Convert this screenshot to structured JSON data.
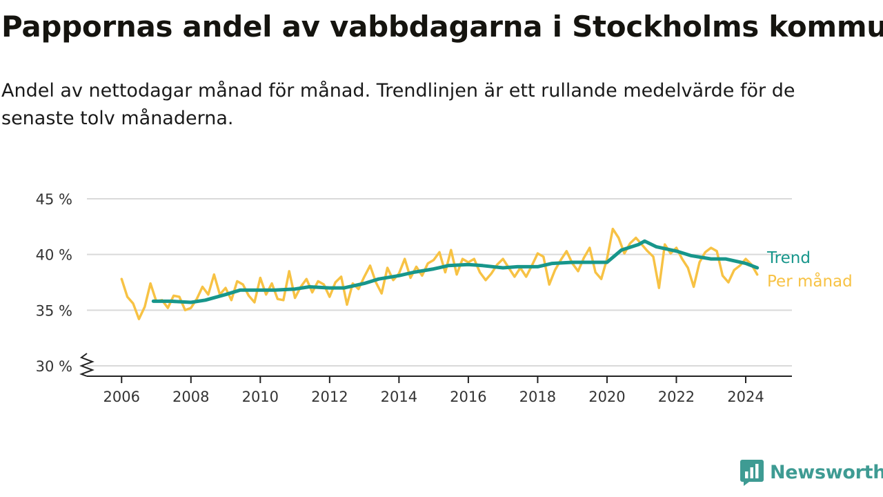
{
  "title": "Pappornas andel av vabbdagarna i Stockholms kommun",
  "subtitle": "Andel av nettodagar månad för månad. Trendlinjen är ett rullande medelvärde för de senaste tolv månaderna.",
  "brand": {
    "name": "Newsworthy",
    "icon": "newsworthy-bar-chart-logo-icon",
    "color": "#3e9b93"
  },
  "chart_data": {
    "type": "line",
    "x_type": "date",
    "xlim": [
      "2005-01-01",
      "2025-05-01"
    ],
    "ylim": [
      30,
      45
    ],
    "y_axis_broken": true,
    "grid": true,
    "x_tick_values": [
      "2006-01-01",
      "2008-01-01",
      "2010-01-01",
      "2012-01-01",
      "2014-01-01",
      "2016-01-01",
      "2018-01-01",
      "2020-01-01",
      "2022-01-01",
      "2024-01-01"
    ],
    "x_tick_labels": [
      "2006",
      "2008",
      "2010",
      "2012",
      "2014",
      "2016",
      "2018",
      "2020",
      "2022",
      "2024"
    ],
    "y_ticks": [
      30,
      35,
      40,
      45
    ],
    "y_tick_labels": [
      "30 %",
      "35 %",
      "40 %",
      "45 %"
    ],
    "legend_placement": "right, at line ends",
    "series": [
      {
        "name": "Per månad",
        "color": "#f7c244",
        "points": [
          [
            "2006-01-01",
            37.8
          ],
          [
            "2006-03-01",
            36.2
          ],
          [
            "2006-05-01",
            35.6
          ],
          [
            "2006-07-01",
            34.2
          ],
          [
            "2006-09-01",
            35.3
          ],
          [
            "2006-11-01",
            37.4
          ],
          [
            "2007-01-01",
            35.8
          ],
          [
            "2007-03-01",
            35.9
          ],
          [
            "2007-05-01",
            35.2
          ],
          [
            "2007-07-01",
            36.3
          ],
          [
            "2007-09-01",
            36.2
          ],
          [
            "2007-11-01",
            35.0
          ],
          [
            "2008-01-01",
            35.2
          ],
          [
            "2008-03-01",
            36.0
          ],
          [
            "2008-05-01",
            37.1
          ],
          [
            "2008-07-01",
            36.4
          ],
          [
            "2008-09-01",
            38.2
          ],
          [
            "2008-11-01",
            36.4
          ],
          [
            "2009-01-01",
            37.0
          ],
          [
            "2009-03-01",
            35.9
          ],
          [
            "2009-05-01",
            37.6
          ],
          [
            "2009-07-01",
            37.3
          ],
          [
            "2009-09-01",
            36.3
          ],
          [
            "2009-11-01",
            35.7
          ],
          [
            "2010-01-01",
            37.9
          ],
          [
            "2010-03-01",
            36.4
          ],
          [
            "2010-05-01",
            37.4
          ],
          [
            "2010-07-01",
            36.0
          ],
          [
            "2010-09-01",
            35.9
          ],
          [
            "2010-11-01",
            38.5
          ],
          [
            "2011-01-01",
            36.1
          ],
          [
            "2011-03-01",
            37.1
          ],
          [
            "2011-05-01",
            37.8
          ],
          [
            "2011-07-01",
            36.6
          ],
          [
            "2011-09-01",
            37.6
          ],
          [
            "2011-11-01",
            37.3
          ],
          [
            "2012-01-01",
            36.2
          ],
          [
            "2012-03-01",
            37.5
          ],
          [
            "2012-05-01",
            38.0
          ],
          [
            "2012-07-01",
            35.5
          ],
          [
            "2012-09-01",
            37.4
          ],
          [
            "2012-11-01",
            36.9
          ],
          [
            "2013-01-01",
            38.0
          ],
          [
            "2013-03-01",
            39.0
          ],
          [
            "2013-05-01",
            37.5
          ],
          [
            "2013-07-01",
            36.5
          ],
          [
            "2013-09-01",
            38.8
          ],
          [
            "2013-11-01",
            37.7
          ],
          [
            "2014-01-01",
            38.3
          ],
          [
            "2014-03-01",
            39.6
          ],
          [
            "2014-05-01",
            37.9
          ],
          [
            "2014-07-01",
            38.9
          ],
          [
            "2014-09-01",
            38.1
          ],
          [
            "2014-11-01",
            39.2
          ],
          [
            "2015-01-01",
            39.5
          ],
          [
            "2015-03-01",
            40.2
          ],
          [
            "2015-05-01",
            38.4
          ],
          [
            "2015-07-01",
            40.4
          ],
          [
            "2015-09-01",
            38.2
          ],
          [
            "2015-11-01",
            39.6
          ],
          [
            "2016-01-01",
            39.3
          ],
          [
            "2016-03-01",
            39.6
          ],
          [
            "2016-05-01",
            38.4
          ],
          [
            "2016-07-01",
            37.7
          ],
          [
            "2016-09-01",
            38.3
          ],
          [
            "2016-11-01",
            39.1
          ],
          [
            "2017-01-01",
            39.6
          ],
          [
            "2017-03-01",
            38.8
          ],
          [
            "2017-05-01",
            38.0
          ],
          [
            "2017-07-01",
            38.8
          ],
          [
            "2017-09-01",
            38.0
          ],
          [
            "2017-11-01",
            39.0
          ],
          [
            "2018-01-01",
            40.1
          ],
          [
            "2018-03-01",
            39.8
          ],
          [
            "2018-05-01",
            37.3
          ],
          [
            "2018-07-01",
            38.6
          ],
          [
            "2018-09-01",
            39.5
          ],
          [
            "2018-11-01",
            40.3
          ],
          [
            "2019-01-01",
            39.2
          ],
          [
            "2019-03-01",
            38.5
          ],
          [
            "2019-05-01",
            39.7
          ],
          [
            "2019-07-01",
            40.6
          ],
          [
            "2019-09-01",
            38.4
          ],
          [
            "2019-11-01",
            37.8
          ],
          [
            "2020-01-01",
            39.6
          ],
          [
            "2020-03-01",
            42.3
          ],
          [
            "2020-05-01",
            41.5
          ],
          [
            "2020-07-01",
            40.1
          ],
          [
            "2020-09-01",
            41.0
          ],
          [
            "2020-11-01",
            41.5
          ],
          [
            "2021-01-01",
            40.9
          ],
          [
            "2021-03-01",
            40.3
          ],
          [
            "2021-05-01",
            39.8
          ],
          [
            "2021-07-01",
            37.0
          ],
          [
            "2021-09-01",
            40.9
          ],
          [
            "2021-11-01",
            40.1
          ],
          [
            "2022-01-01",
            40.6
          ],
          [
            "2022-03-01",
            39.6
          ],
          [
            "2022-05-01",
            38.8
          ],
          [
            "2022-07-01",
            37.1
          ],
          [
            "2022-09-01",
            39.3
          ],
          [
            "2022-11-01",
            40.2
          ],
          [
            "2023-01-01",
            40.6
          ],
          [
            "2023-03-01",
            40.3
          ],
          [
            "2023-05-01",
            38.1
          ],
          [
            "2023-07-01",
            37.5
          ],
          [
            "2023-09-01",
            38.6
          ],
          [
            "2023-11-01",
            39.0
          ],
          [
            "2024-01-01",
            39.6
          ],
          [
            "2024-03-01",
            39.1
          ],
          [
            "2024-05-01",
            38.2
          ]
        ]
      },
      {
        "name": "Trend",
        "color": "#17968b",
        "points": [
          [
            "2006-12-01",
            35.8
          ],
          [
            "2007-06-01",
            35.8
          ],
          [
            "2008-01-01",
            35.7
          ],
          [
            "2008-06-01",
            35.9
          ],
          [
            "2009-01-01",
            36.4
          ],
          [
            "2009-06-01",
            36.8
          ],
          [
            "2010-01-01",
            36.8
          ],
          [
            "2010-06-01",
            36.8
          ],
          [
            "2011-01-01",
            36.9
          ],
          [
            "2011-06-01",
            37.1
          ],
          [
            "2012-01-01",
            37.0
          ],
          [
            "2012-06-01",
            37.0
          ],
          [
            "2013-01-01",
            37.4
          ],
          [
            "2013-06-01",
            37.8
          ],
          [
            "2014-01-01",
            38.1
          ],
          [
            "2014-06-01",
            38.4
          ],
          [
            "2015-01-01",
            38.7
          ],
          [
            "2015-06-01",
            39.0
          ],
          [
            "2016-01-01",
            39.1
          ],
          [
            "2016-06-01",
            39.0
          ],
          [
            "2017-01-01",
            38.8
          ],
          [
            "2017-06-01",
            38.9
          ],
          [
            "2018-01-01",
            38.9
          ],
          [
            "2018-06-01",
            39.2
          ],
          [
            "2019-01-01",
            39.3
          ],
          [
            "2019-06-01",
            39.3
          ],
          [
            "2020-01-01",
            39.3
          ],
          [
            "2020-06-01",
            40.4
          ],
          [
            "2020-12-01",
            40.9
          ],
          [
            "2021-02-01",
            41.2
          ],
          [
            "2021-06-01",
            40.7
          ],
          [
            "2022-01-01",
            40.3
          ],
          [
            "2022-06-01",
            39.9
          ],
          [
            "2023-01-01",
            39.6
          ],
          [
            "2023-06-01",
            39.6
          ],
          [
            "2024-01-01",
            39.2
          ],
          [
            "2024-05-01",
            38.8
          ]
        ]
      }
    ]
  }
}
